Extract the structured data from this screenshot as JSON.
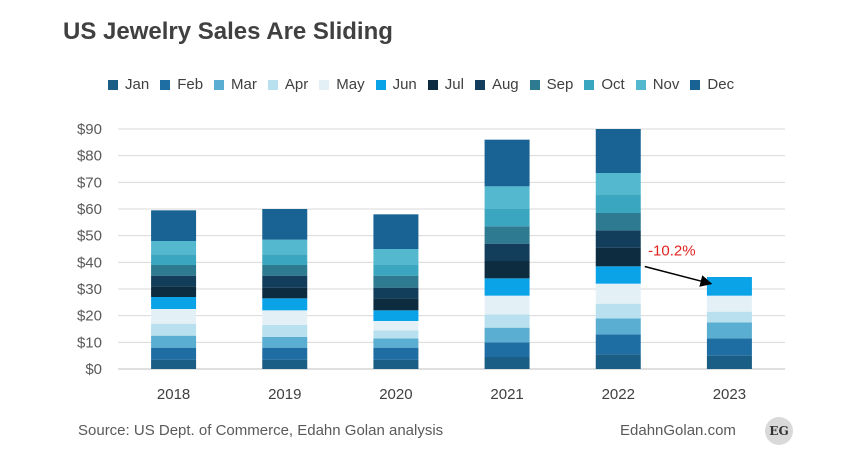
{
  "chart_data": {
    "type": "bar",
    "stacked": true,
    "title": "US Jewelry Sales Are Sliding",
    "xlabel": "",
    "ylabel": "",
    "ylim": [
      0,
      90
    ],
    "y_ticks": [
      "$0",
      "$10",
      "$20",
      "$30",
      "$40",
      "$50",
      "$60",
      "$70",
      "$80",
      "$90"
    ],
    "grid": true,
    "legend_position": "top",
    "categories": [
      "2018",
      "2019",
      "2020",
      "2021",
      "2022",
      "2023"
    ],
    "series": [
      {
        "name": "Jan",
        "color": "#1b5e85",
        "values": [
          3.5,
          3.5,
          3.5,
          4.5,
          5.5,
          5.0
        ]
      },
      {
        "name": "Feb",
        "color": "#1f6ea3",
        "values": [
          4.5,
          4.5,
          4.5,
          5.5,
          7.5,
          6.5
        ]
      },
      {
        "name": "Mar",
        "color": "#5aaed1",
        "values": [
          4.5,
          4.0,
          3.5,
          5.5,
          6.0,
          6.0
        ]
      },
      {
        "name": "Apr",
        "color": "#b8e0ee",
        "values": [
          4.5,
          4.5,
          3.0,
          5.0,
          5.5,
          4.0
        ]
      },
      {
        "name": "May",
        "color": "#e3f1f7",
        "values": [
          5.5,
          5.5,
          3.5,
          7.0,
          7.5,
          6.0
        ]
      },
      {
        "name": "Jun",
        "color": "#0aa3e8",
        "values": [
          4.5,
          4.5,
          4.0,
          6.5,
          6.5,
          7.0
        ]
      },
      {
        "name": "Jul",
        "color": "#0d2c40",
        "values": [
          4.0,
          4.0,
          4.5,
          6.5,
          7.0,
          null
        ]
      },
      {
        "name": "Aug",
        "color": "#123e5c",
        "values": [
          4.0,
          4.5,
          4.0,
          6.5,
          6.5,
          null
        ]
      },
      {
        "name": "Sep",
        "color": "#2e7a91",
        "values": [
          4.0,
          4.0,
          4.5,
          6.5,
          6.5,
          null
        ]
      },
      {
        "name": "Oct",
        "color": "#3ba6bf",
        "values": [
          4.0,
          4.0,
          4.0,
          6.5,
          7.0,
          null
        ]
      },
      {
        "name": "Nov",
        "color": "#54b8cf",
        "values": [
          5.0,
          5.5,
          6.0,
          8.5,
          8.0,
          null
        ]
      },
      {
        "name": "Dec",
        "color": "#186393",
        "values": [
          11.5,
          11.5,
          13.0,
          17.5,
          16.5,
          null
        ]
      }
    ],
    "annotation": {
      "text": "-10.2%",
      "color": "#e0231f",
      "from_category": "2022",
      "to_category": "2023"
    }
  },
  "footer": {
    "source": "Source: US Dept. of Commerce,  Edahn Golan  analysis",
    "site": "EdahnGolan.com",
    "logo_text": "EG"
  }
}
